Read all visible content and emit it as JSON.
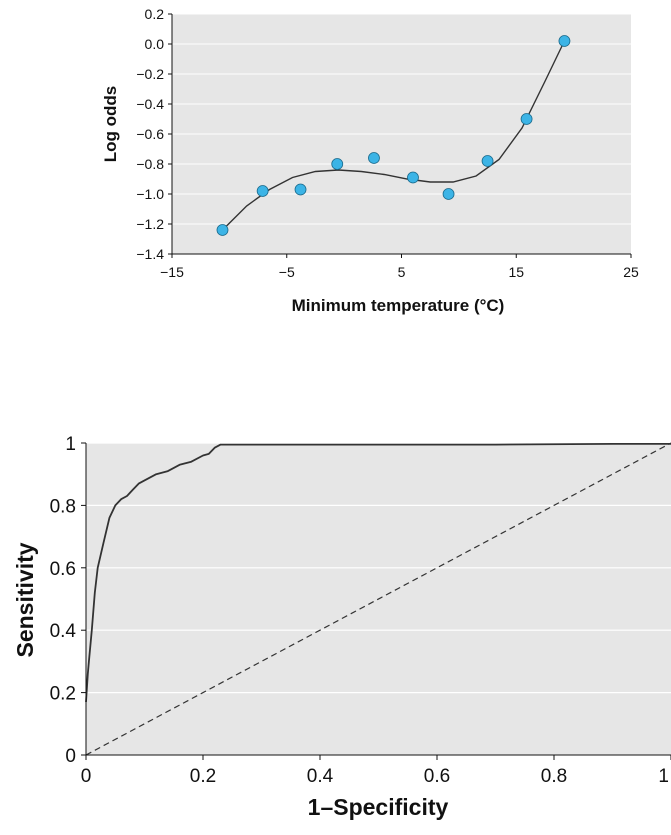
{
  "colors": {
    "plot_background": "#e6e6e6",
    "gridline": "#ffffff",
    "marker_fill": "#3cb4e6",
    "marker_stroke": "#1a6a8c",
    "curve": "#333333"
  },
  "chart_data": [
    {
      "type": "scatter",
      "title": "",
      "xlabel": "Minimum temperature (°C)",
      "ylabel": "Log odds",
      "xlim": [
        -15,
        25
      ],
      "ylim": [
        -1.4,
        0.2
      ],
      "x_ticks": [
        -15,
        -5,
        5,
        15,
        25
      ],
      "x_tick_labels": [
        "−15",
        "−5",
        "5",
        "15",
        "25"
      ],
      "y_ticks": [
        0.2,
        0.0,
        -0.2,
        -0.4,
        -0.6,
        -0.8,
        -1.0,
        -1.2,
        -1.4
      ],
      "y_tick_labels": [
        "0.2",
        "0.0",
        "−0.2",
        "−0.4",
        "−0.6",
        "−0.8",
        "−1.0",
        "−1.2",
        "−1.4"
      ],
      "grid": "horizontal",
      "series": [
        {
          "kind": "points",
          "x": [
            -10.6,
            -7.1,
            -3.8,
            -0.6,
            2.6,
            6.0,
            9.1,
            12.5,
            15.9,
            19.2
          ],
          "y": [
            -1.24,
            -0.98,
            -0.97,
            -0.8,
            -0.76,
            -0.89,
            -1.0,
            -0.78,
            -0.5,
            0.02
          ]
        },
        {
          "kind": "fitted-curve",
          "x": [
            -10.6,
            -8.5,
            -6.5,
            -4.5,
            -2.5,
            -0.5,
            1.5,
            3.5,
            5.5,
            7.5,
            9.5,
            11.5,
            13.5,
            15.5,
            17.5,
            19.2
          ],
          "y": [
            -1.24,
            -1.08,
            -0.97,
            -0.89,
            -0.85,
            -0.84,
            -0.85,
            -0.87,
            -0.9,
            -0.92,
            -0.92,
            -0.88,
            -0.77,
            -0.56,
            -0.25,
            0.02
          ]
        }
      ]
    },
    {
      "type": "line",
      "title": "",
      "xlabel": "1–Specificity",
      "ylabel": "Sensitivity",
      "xlim": [
        0,
        1
      ],
      "ylim": [
        0,
        1
      ],
      "x_ticks": [
        0,
        0.2,
        0.4,
        0.6,
        0.8,
        1
      ],
      "x_tick_labels": [
        "0",
        "0.2",
        "0.4",
        "0.6",
        "0.8",
        "1"
      ],
      "y_ticks": [
        1,
        0.8,
        0.6,
        0.4,
        0.2,
        0
      ],
      "y_tick_labels": [
        "1",
        "0.8",
        "0.6",
        "0.4",
        "0.2",
        "0"
      ],
      "grid": "horizontal",
      "series": [
        {
          "kind": "roc-curve",
          "x": [
            0,
            0.003,
            0.005,
            0.01,
            0.015,
            0.02,
            0.03,
            0.04,
            0.05,
            0.06,
            0.07,
            0.08,
            0.09,
            0.1,
            0.12,
            0.14,
            0.16,
            0.18,
            0.2,
            0.21,
            0.22,
            0.23,
            0.3,
            0.5,
            0.7,
            0.9,
            1
          ],
          "y": [
            0.17,
            0.26,
            0.3,
            0.4,
            0.52,
            0.6,
            0.68,
            0.76,
            0.8,
            0.82,
            0.83,
            0.85,
            0.87,
            0.88,
            0.9,
            0.91,
            0.93,
            0.94,
            0.96,
            0.965,
            0.985,
            0.995,
            0.995,
            0.995,
            0.995,
            0.997,
            0.997
          ]
        },
        {
          "kind": "reference-diagonal",
          "x": [
            0,
            1
          ],
          "y": [
            0,
            1
          ]
        }
      ]
    }
  ]
}
